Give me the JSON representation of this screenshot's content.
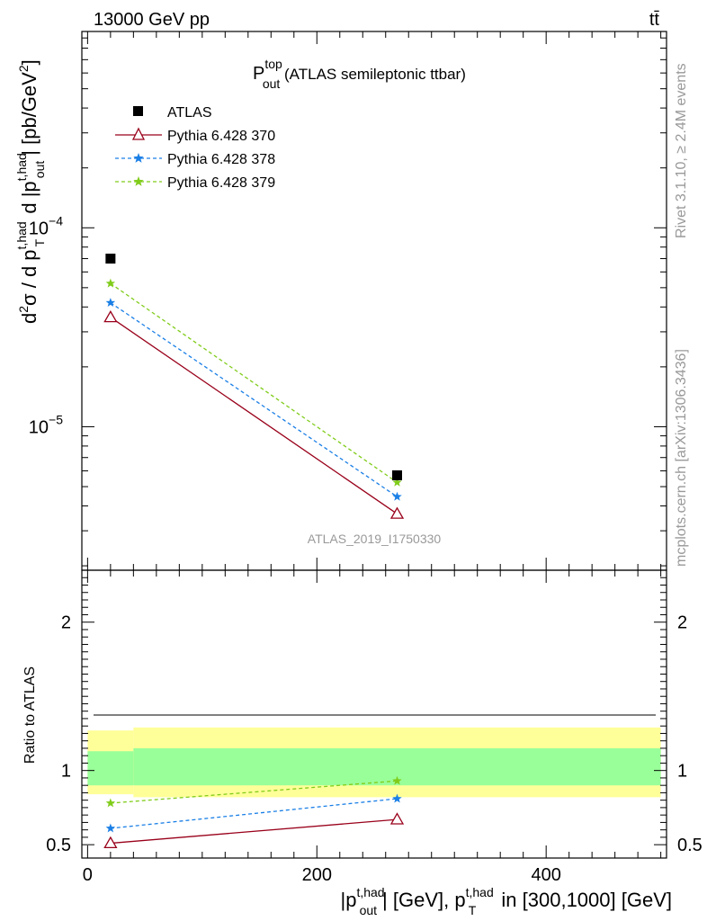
{
  "header": {
    "left": "13000 GeV pp",
    "right": "tt̄"
  },
  "side": {
    "rivet": "Rivet 3.1.10, ≥ 2.4M events",
    "mcplots": "mcplots.cern.ch [arXiv:1306.3436]"
  },
  "watermark": "ATLAS_2019_I1750330",
  "colors": {
    "data": "#000000",
    "py370": "#99001a",
    "py378": "#1a7fe6",
    "py379": "#80cc1a",
    "band_inner": "#99ff99",
    "band_outer": "#ffff99"
  },
  "chart_data": [
    {
      "type": "scatter",
      "panel": "main",
      "title_main": "P",
      "title_sup": "top",
      "title_sub": "out",
      "title_rest": " (ATLAS semileptonic ttbar)",
      "ylabel": "d²σ / d p_T^{t,had} d |p_out^{t,had}| [pb/GeV²]",
      "yscale": "log",
      "xlim": [
        -5,
        505
      ],
      "ylim": [
        1.9e-06,
        0.00097
      ],
      "ytick_labels": [
        {
          "value": 0.0001,
          "base": "10",
          "exp": "−4"
        },
        {
          "value": 1e-05,
          "base": "10",
          "exp": "−5"
        }
      ],
      "legend_position": "top-left",
      "series": [
        {
          "name": "ATLAS",
          "key": "data",
          "marker": "square",
          "x": [
            20,
            270
          ],
          "y": [
            7e-05,
            5.7e-06
          ]
        },
        {
          "name": "Pythia 6.428 370",
          "key": "py370",
          "marker": "triangle",
          "line": "solid",
          "x": [
            20,
            270
          ],
          "y": [
            3.55e-05,
            3.65e-06
          ]
        },
        {
          "name": "Pythia 6.428 378",
          "key": "py378",
          "marker": "star",
          "line": "dashed",
          "x": [
            20,
            270
          ],
          "y": [
            4.2e-05,
            4.45e-06
          ]
        },
        {
          "name": "Pythia 6.428 379",
          "key": "py379",
          "marker": "star",
          "line": "dashed",
          "x": [
            20,
            270
          ],
          "y": [
            5.25e-05,
            5.25e-06
          ]
        }
      ]
    },
    {
      "type": "scatter",
      "panel": "ratio",
      "ylabel": "Ratio to ATLAS",
      "xlabel_parts": [
        "|p",
        "t,had",
        "out",
        "| [GeV], p",
        "t,had",
        "T",
        " in [300,1000] [GeV]"
      ],
      "xlim": [
        -5,
        505
      ],
      "ylim": [
        0.41,
        2.35
      ],
      "xticks": [
        0,
        200,
        400
      ],
      "yticks": [
        0.5,
        1,
        2
      ],
      "bands": [
        {
          "x": [
            0,
            40
          ],
          "inner": [
            0.9,
            1.13
          ],
          "outer": [
            0.84,
            1.27
          ]
        },
        {
          "x": [
            40,
            500
          ],
          "inner": [
            0.9,
            1.15
          ],
          "outer": [
            0.82,
            1.29
          ]
        }
      ],
      "series": [
        {
          "name": "Pythia 6.428 370",
          "key": "py370",
          "marker": "triangle",
          "line": "solid",
          "x": [
            20,
            270
          ],
          "y": [
            0.51,
            0.67
          ]
        },
        {
          "name": "Pythia 6.428 378",
          "key": "py378",
          "marker": "star",
          "line": "dashed",
          "x": [
            20,
            270
          ],
          "y": [
            0.61,
            0.81
          ]
        },
        {
          "name": "Pythia 6.428 379",
          "key": "py379",
          "marker": "star",
          "line": "dashed",
          "x": [
            20,
            270
          ],
          "y": [
            0.78,
            0.93
          ]
        }
      ]
    }
  ]
}
